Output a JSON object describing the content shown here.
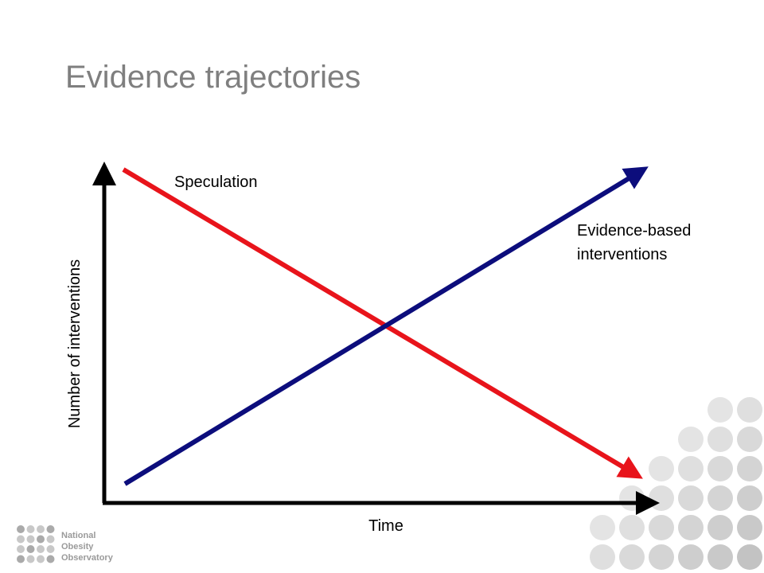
{
  "title": "Evidence trajectories",
  "diagram": {
    "y_axis_label": "Number of interventions",
    "x_axis_label": "Time",
    "lines": [
      {
        "name": "speculation",
        "label_lines": [
          "Speculation"
        ]
      },
      {
        "name": "evidence",
        "label_lines": [
          "Evidence-based",
          "interventions"
        ]
      }
    ]
  },
  "logo": {
    "lines": [
      "National",
      "Obesity",
      "Observatory"
    ]
  }
}
